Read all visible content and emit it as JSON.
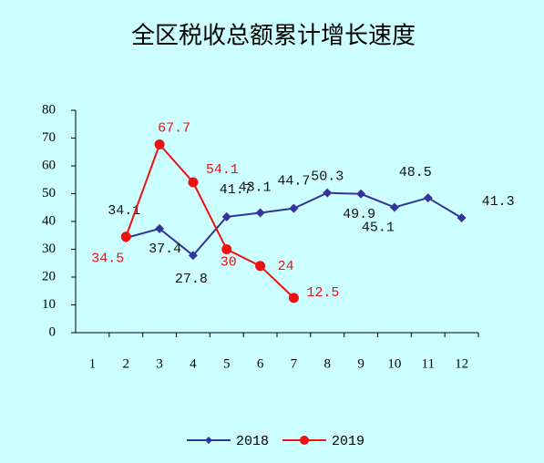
{
  "chart_data": {
    "type": "line",
    "title": "全区税收总额累计增长速度",
    "categories": [
      "1",
      "2",
      "3",
      "4",
      "5",
      "6",
      "7",
      "8",
      "9",
      "10",
      "11",
      "12"
    ],
    "series": [
      {
        "name": "2018",
        "color": "#333399",
        "marker": "diamond",
        "values": [
          null,
          34.1,
          37.4,
          27.8,
          41.7,
          43.1,
          44.7,
          50.3,
          49.9,
          45.1,
          48.5,
          41.3
        ]
      },
      {
        "name": "2019",
        "color": "#ee1111",
        "marker": "circle",
        "values": [
          null,
          34.5,
          67.7,
          54.1,
          30,
          24,
          12.5,
          null,
          null,
          null,
          null,
          null
        ]
      }
    ],
    "ylim": [
      0,
      80
    ],
    "yticks": [
      0,
      10,
      20,
      30,
      40,
      50,
      60,
      70,
      80
    ],
    "legend": "bottom"
  }
}
